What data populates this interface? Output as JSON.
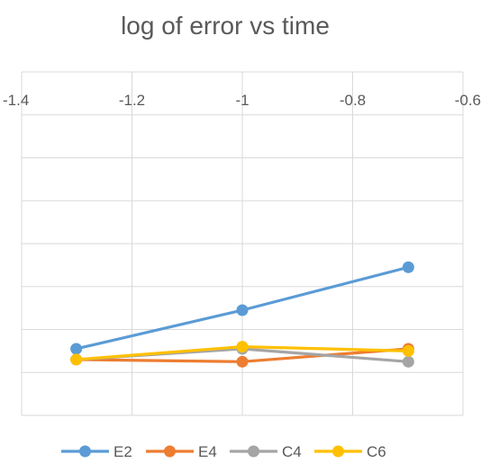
{
  "chart_data": {
    "type": "line",
    "title": "log of error vs time",
    "xlabel": "",
    "ylabel": "",
    "xlim": [
      -1.4,
      -0.6
    ],
    "xticks": [
      -1.4,
      -1.2,
      -1,
      -0.8,
      -0.6
    ],
    "xtick_labels": [
      "-1.4",
      "-1.2",
      "-1",
      "-0.8",
      "-0.6"
    ],
    "x_axis_position": "top",
    "ylim": [
      -8,
      0
    ],
    "y_gridlines": [
      0,
      -1,
      -2,
      -3,
      -4,
      -5,
      -6,
      -7,
      -8
    ],
    "y_tick_labels_shown": false,
    "grid": true,
    "legend": "bottom",
    "x": [
      -1.301,
      -1.0,
      -0.699
    ],
    "series": [
      {
        "name": "E2",
        "color": "#5B9BD5",
        "values": [
          -6.45,
          -5.55,
          -4.55
        ]
      },
      {
        "name": "E4",
        "color": "#ED7D31",
        "values": [
          -6.7,
          -6.75,
          -6.45
        ]
      },
      {
        "name": "C4",
        "color": "#A5A5A5",
        "values": [
          -6.7,
          -6.45,
          -6.75
        ]
      },
      {
        "name": "C6",
        "color": "#FFC000",
        "values": [
          -6.7,
          -6.4,
          -6.5
        ]
      }
    ]
  }
}
